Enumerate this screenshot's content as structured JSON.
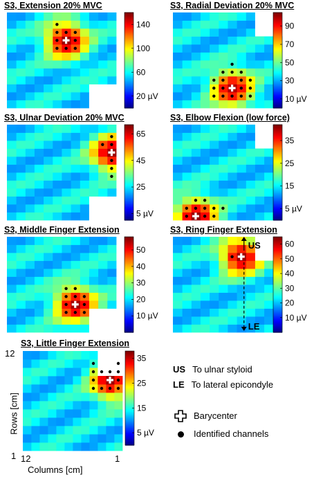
{
  "chart_data": [
    {
      "type": "heatmap",
      "title": "S3, Extension 20% MVC",
      "colorbar_ticks": [
        "140",
        "100",
        "60",
        "20 µV"
      ],
      "colorbar_range_uV": [
        0,
        160
      ],
      "hotspot": {
        "row": 9,
        "col": 6
      },
      "hot_value": 155,
      "identified_channels": [
        [
          11,
          7
        ],
        [
          10,
          5
        ],
        [
          10,
          6
        ],
        [
          10,
          7
        ],
        [
          9,
          5
        ],
        [
          9,
          7
        ],
        [
          8,
          5
        ],
        [
          8,
          6
        ],
        [
          8,
          7
        ]
      ]
    },
    {
      "type": "heatmap",
      "title": "S3, Radial Deviation 20% MVC",
      "colorbar_ticks": [
        "90",
        "70",
        "50",
        "30",
        "10 µV"
      ],
      "colorbar_range_uV": [
        0,
        105
      ],
      "hotspot": {
        "row": 3,
        "col": 6
      },
      "hot_value": 100,
      "identified_channels": [
        [
          6,
          6
        ],
        [
          5,
          5
        ],
        [
          5,
          6
        ],
        [
          5,
          7
        ],
        [
          4,
          4
        ],
        [
          4,
          5
        ],
        [
          4,
          7
        ],
        [
          4,
          8
        ],
        [
          3,
          4
        ],
        [
          3,
          5
        ],
        [
          3,
          7
        ],
        [
          3,
          8
        ],
        [
          2,
          4
        ],
        [
          2,
          5
        ],
        [
          2,
          6
        ],
        [
          2,
          7
        ],
        [
          2,
          8
        ]
      ]
    },
    {
      "type": "heatmap",
      "title": "S3, Ulnar Deviation 20% MVC",
      "colorbar_ticks": [
        "65",
        "45",
        "25",
        "5 µV"
      ],
      "colorbar_range_uV": [
        0,
        72
      ],
      "hotspot": {
        "row": 9,
        "col": 1
      },
      "hot_value": 70,
      "identified_channels": [
        [
          11,
          1
        ],
        [
          10,
          1
        ],
        [
          10,
          2
        ],
        [
          8,
          1
        ],
        [
          7,
          1
        ],
        [
          6,
          1
        ]
      ]
    },
    {
      "type": "heatmap",
      "title": "S3, Elbow Flexion (low force)",
      "colorbar_ticks": [
        "35",
        "25",
        "15",
        "5 µV"
      ],
      "colorbar_range_uV": [
        0,
        42
      ],
      "hotspot": {
        "row": 1,
        "col": 10
      },
      "hot_value": 41,
      "identified_channels": [
        [
          3,
          10
        ],
        [
          3,
          9
        ],
        [
          2,
          11
        ],
        [
          2,
          10
        ],
        [
          2,
          9
        ],
        [
          2,
          8
        ],
        [
          2,
          7
        ],
        [
          1,
          11
        ],
        [
          1,
          9
        ],
        [
          1,
          8
        ]
      ]
    },
    {
      "type": "heatmap",
      "title": "S3, Middle Finger Extension",
      "colorbar_ticks": [
        "50",
        "40",
        "30",
        "20",
        "10 µV"
      ],
      "colorbar_range_uV": [
        0,
        58
      ],
      "hotspot": {
        "row": 4,
        "col": 5
      },
      "hot_value": 56,
      "identified_channels": [
        [
          6,
          6
        ],
        [
          6,
          5
        ],
        [
          5,
          6
        ],
        [
          5,
          5
        ],
        [
          5,
          4
        ],
        [
          4,
          6
        ],
        [
          4,
          4
        ],
        [
          3,
          6
        ],
        [
          3,
          5
        ],
        [
          3,
          4
        ]
      ]
    },
    {
      "type": "heatmap",
      "title": "S3, Ring Finger Extension",
      "colorbar_ticks": [
        "60",
        "50",
        "40",
        "30",
        "20",
        "10 µV"
      ],
      "colorbar_range_uV": [
        0,
        65
      ],
      "hotspot": {
        "row": 10,
        "col": 5
      },
      "hot_value": 63,
      "identified_channels": [
        [
          10,
          6
        ]
      ],
      "annotations": [
        "US",
        "LE"
      ]
    },
    {
      "type": "heatmap",
      "title": "S3, Little Finger Extension",
      "colorbar_ticks": [
        "35",
        "25",
        "15",
        "5 µV"
      ],
      "colorbar_range_uV": [
        0,
        38
      ],
      "hotspot": {
        "row": 9,
        "col": 2
      },
      "hot_value": 37,
      "identified_channels": [
        [
          11,
          4
        ],
        [
          11,
          1
        ],
        [
          10,
          4
        ],
        [
          10,
          3
        ],
        [
          10,
          2
        ],
        [
          10,
          1
        ],
        [
          9,
          4
        ],
        [
          9,
          1
        ],
        [
          8,
          4
        ],
        [
          8,
          3
        ],
        [
          8,
          2
        ],
        [
          8,
          1
        ]
      ],
      "xlabel": "Columns [cm]",
      "ylabel": "Rows [cm]",
      "x_ticks": [
        "12",
        "1"
      ],
      "y_ticks": [
        "12",
        "1"
      ]
    }
  ],
  "legend": {
    "us_key": "US",
    "us_text": "To ulnar styloid",
    "le_key": "LE",
    "le_text": "To lateral epicondyle",
    "barycenter": "Barycenter",
    "channels": "Identified channels"
  },
  "colors": {
    "colormap": "jet",
    "marker": "#000000",
    "barycenter": "#ffffff"
  }
}
